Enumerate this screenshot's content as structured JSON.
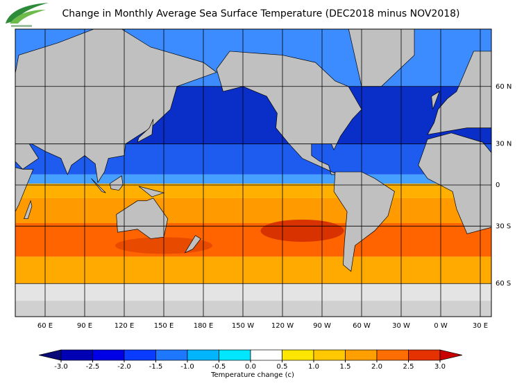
{
  "header": {
    "title": "Change in Monthly Average Sea Surface Temperature (DEC2018 minus NOV2018)"
  },
  "map": {
    "lat_labels": [
      "60 N",
      "30 N",
      "0",
      "30 S",
      "60 S"
    ],
    "lon_labels": [
      "60 E",
      "90 E",
      "120 E",
      "150 E",
      "180 E",
      "150 W",
      "120 W",
      "90 W",
      "60 W",
      "30 W",
      "0 W",
      "30 E"
    ]
  },
  "colorbar": {
    "ticks": [
      {
        "value": -3,
        "label": "-3.0"
      },
      {
        "value": -2.5,
        "label": "-2.5"
      },
      {
        "value": -2,
        "label": "-2.0"
      },
      {
        "value": -1.5,
        "label": "-1.5"
      },
      {
        "value": -1,
        "label": "-1.0"
      },
      {
        "value": -0.5,
        "label": "-0.5"
      },
      {
        "value": 0,
        "label": "0.0"
      },
      0.5,
      {
        "value": 1,
        "label": "1.0"
      },
      1.5,
      {
        "value": 2,
        "label": "2.0"
      },
      2.5,
      {
        "value": 3,
        "label": "3.0"
      }
    ],
    "colors": [
      "#0a0a78",
      "#0000b4",
      "#0000e6",
      "#0a3cff",
      "#1e78ff",
      "#00b4ff",
      "#00e6ff",
      "#ffffff",
      "#ffe600",
      "#ffc800",
      "#ffa000",
      "#ff6e00",
      "#e63200",
      "#c80000"
    ],
    "label": "Temperature change  (c)"
  }
}
